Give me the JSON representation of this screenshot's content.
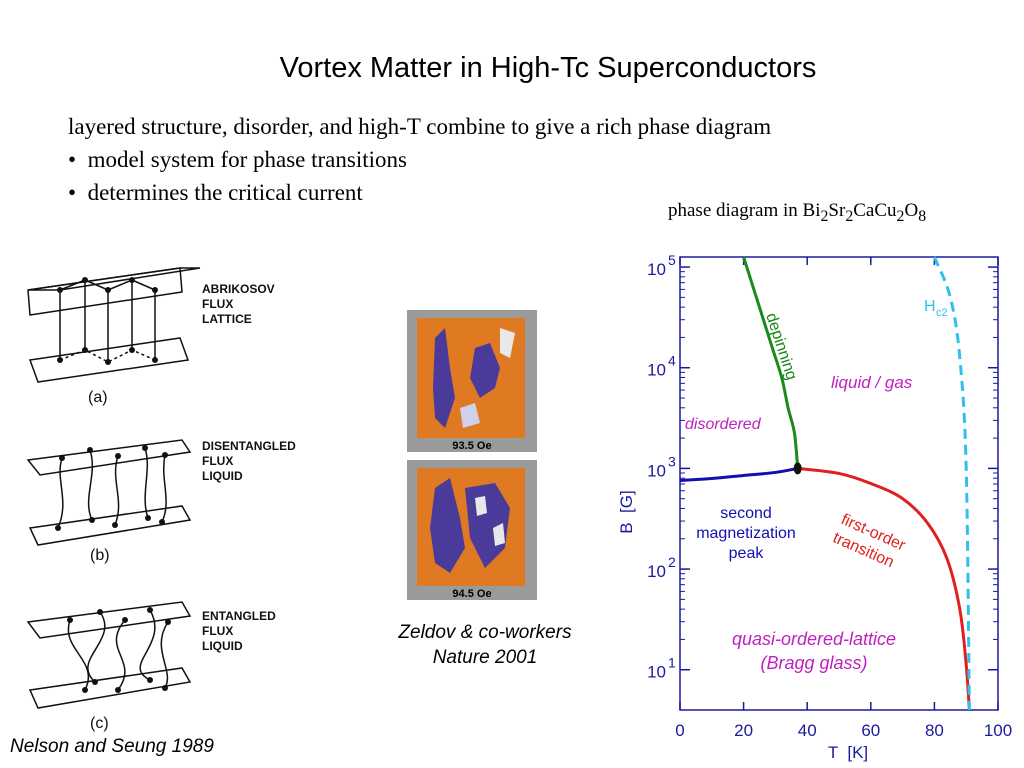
{
  "title": "Vortex Matter in High-Tc Superconductors",
  "intro": {
    "line": "layered structure, disorder, and high-T combine to give a rich phase diagram",
    "bullets": [
      "model system for phase transitions",
      "determines the critical current"
    ],
    "bullet_symbol": "•"
  },
  "phase_caption": {
    "prefix": "phase diagram in ",
    "formula": [
      {
        "t": "Bi",
        "s": "2"
      },
      {
        "t": "Sr",
        "s": "2"
      },
      {
        "t": "CaCu",
        "s": "2"
      },
      {
        "t": "O",
        "s": "8"
      }
    ]
  },
  "left_figure": {
    "panels": [
      {
        "label_lines": [
          "ABRIKOSOV",
          "FLUX",
          "LATTICE"
        ],
        "tag": "(a)"
      },
      {
        "label_lines": [
          "DISENTANGLED",
          "FLUX",
          "LIQUID"
        ],
        "tag": "(b)"
      },
      {
        "label_lines": [
          "ENTANGLED",
          "FLUX",
          "LIQUID"
        ],
        "tag": "(c)"
      }
    ],
    "credit": "Nelson and Seung 1989"
  },
  "images": {
    "top_label": "93.5 Oe",
    "bottom_label": "94.5 Oe",
    "credit_lines": [
      "Zeldov & co-workers",
      "Nature 2001"
    ],
    "colors": {
      "orange": "#e07a22",
      "blue": "#4a3a9a",
      "frame": "#8a8a8a"
    }
  },
  "chart_data": {
    "type": "line",
    "xlabel": "T  [K]",
    "ylabel": "B  [G]",
    "xlim": [
      0,
      100
    ],
    "ylim_log10": [
      0.6,
      5.1
    ],
    "yscale": "log",
    "x_ticks": [
      "0",
      "20",
      "40",
      "60",
      "80",
      "100"
    ],
    "y_ticks": [
      {
        "base": "10",
        "exp": "1"
      },
      {
        "base": "10",
        "exp": "2"
      },
      {
        "base": "10",
        "exp": "3"
      },
      {
        "base": "10",
        "exp": "4"
      },
      {
        "base": "10",
        "exp": "5"
      }
    ],
    "series": [
      {
        "name": "depinning",
        "color": "#1a8a1a",
        "style": "solid",
        "x": [
          20,
          25,
          29,
          32,
          34,
          36,
          37
        ],
        "log10y": [
          5.1,
          4.6,
          4.2,
          3.9,
          3.6,
          3.35,
          3.0
        ]
      },
      {
        "name": "first-order transition",
        "color": "#e02020",
        "style": "solid",
        "x": [
          37,
          50,
          60,
          70,
          78,
          84,
          88,
          90,
          91
        ],
        "log10y": [
          3.0,
          2.95,
          2.85,
          2.7,
          2.45,
          2.1,
          1.6,
          1.05,
          0.6
        ]
      },
      {
        "name": "second magnetization peak",
        "color": "#1010b0",
        "style": "solid",
        "x": [
          0,
          10,
          20,
          30,
          37
        ],
        "log10y": [
          2.88,
          2.9,
          2.93,
          2.96,
          3.0
        ]
      },
      {
        "name": "Hc2",
        "color": "#30c0f0",
        "style": "dashed",
        "x": [
          80,
          85,
          88,
          90,
          91
        ],
        "log10y": [
          5.1,
          4.7,
          4.1,
          3.0,
          0.6
        ]
      }
    ],
    "point": {
      "x": 37,
      "log10y": 3.0
    },
    "annotations": {
      "depinning": "depinning",
      "liquid": "liquid / gas",
      "disordered": "disordered",
      "second_lines": [
        "second",
        "magnetization",
        "peak"
      ],
      "first_lines": [
        "first-order",
        "transition"
      ],
      "quasi_lines": [
        "quasi-ordered-lattice",
        "(Bragg glass)"
      ],
      "hc2_base": "H",
      "hc2_sub": "c2"
    },
    "colors": {
      "axis": "#1a1aa0",
      "magenta": "#c020c0",
      "blue_text": "#1010b0",
      "red_text": "#e02020",
      "green_text": "#1a8a1a",
      "cyan_text": "#30c0f0"
    }
  }
}
